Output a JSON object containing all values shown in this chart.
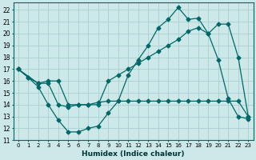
{
  "xlabel": "Humidex (Indice chaleur)",
  "bg_color": "#cce8e8",
  "line_color": "#006868",
  "grid_color": "#aad0d0",
  "xlim": [
    -0.5,
    23.5
  ],
  "ylim": [
    11,
    22.6
  ],
  "yticks": [
    11,
    12,
    13,
    14,
    15,
    16,
    17,
    18,
    19,
    20,
    21,
    22
  ],
  "xticks": [
    0,
    1,
    2,
    3,
    4,
    5,
    6,
    7,
    8,
    9,
    10,
    11,
    12,
    13,
    14,
    15,
    16,
    17,
    18,
    19,
    20,
    21,
    22,
    23
  ],
  "line1_x": [
    0,
    1,
    2,
    3,
    4,
    5,
    6,
    7,
    8,
    9,
    10,
    11,
    12,
    13,
    14,
    15,
    16,
    17,
    18,
    19,
    20,
    21,
    22,
    23
  ],
  "line1_y": [
    17.0,
    16.3,
    15.5,
    14.0,
    12.7,
    11.7,
    11.7,
    12.0,
    12.2,
    13.3,
    14.3,
    16.5,
    17.8,
    19.0,
    20.5,
    21.2,
    22.2,
    21.2,
    21.3,
    20.0,
    17.8,
    14.5,
    13.0,
    12.8
  ],
  "line2_x": [
    0,
    1,
    2,
    3,
    4,
    5,
    6,
    7,
    8,
    9,
    10,
    11,
    12,
    13,
    14,
    15,
    16,
    17,
    18,
    19,
    20,
    21,
    22,
    23
  ],
  "line2_y": [
    17.0,
    16.3,
    15.8,
    16.0,
    16.0,
    14.0,
    14.0,
    14.0,
    14.0,
    16.0,
    16.5,
    17.0,
    17.5,
    18.0,
    18.5,
    19.0,
    19.5,
    20.2,
    20.5,
    20.0,
    20.8,
    20.8,
    18.0,
    13.0
  ],
  "line3_x": [
    0,
    2,
    3,
    4,
    5,
    6,
    7,
    8,
    9,
    10,
    11,
    12,
    13,
    14,
    15,
    16,
    17,
    18,
    19,
    20,
    21,
    22,
    23
  ],
  "line3_y": [
    17.0,
    15.8,
    15.8,
    14.0,
    13.8,
    14.0,
    14.0,
    14.2,
    14.3,
    14.3,
    14.3,
    14.3,
    14.3,
    14.3,
    14.3,
    14.3,
    14.3,
    14.3,
    14.3,
    14.3,
    14.3,
    14.3,
    13.0
  ]
}
